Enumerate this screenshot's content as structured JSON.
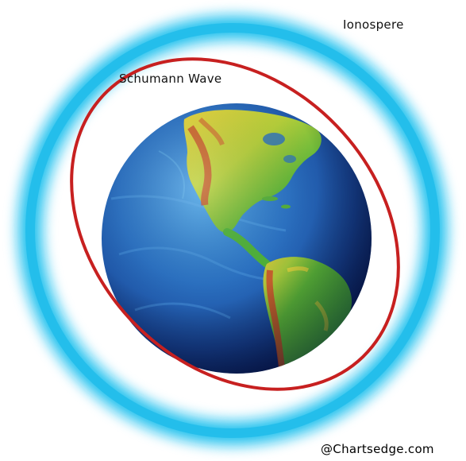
{
  "labels": {
    "ionosphere": "Ionospere",
    "schumann_wave": "Schumann Wave",
    "credit": "@Chartsedge.com"
  },
  "colors": {
    "ionosphere_ring": "#27c3ee",
    "schumann_wave": "#c72020",
    "ocean_dark": "#12307a",
    "ocean_light": "#2f7fd0",
    "land_green": "#3fae3a",
    "land_yellow": "#e8d83a",
    "land_red": "#c8452a"
  },
  "icons": {
    "earth": "earth-globe-icon"
  }
}
